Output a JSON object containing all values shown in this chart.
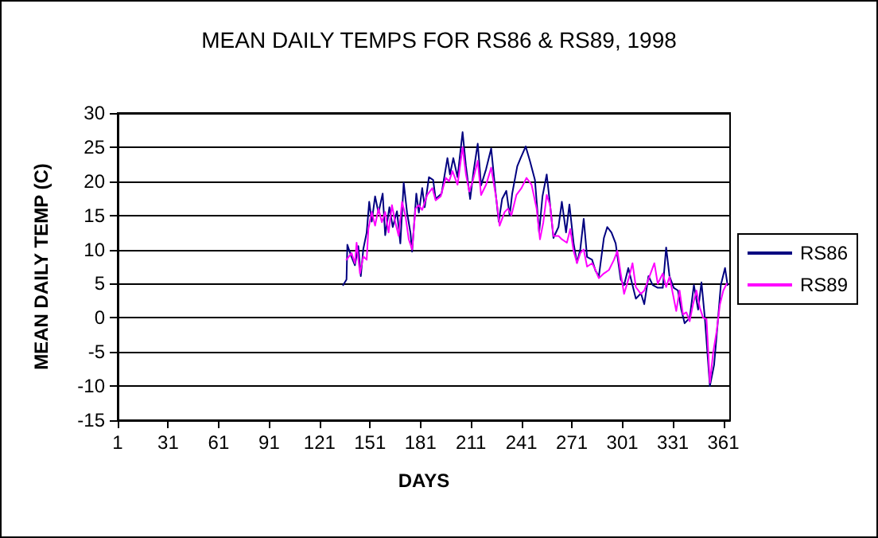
{
  "chart_data": {
    "type": "line",
    "title": "MEAN DAILY TEMPS FOR RS86 & RS89, 1998",
    "xlabel": "DAYS",
    "ylabel": "MEAN DAILY TEMP (C)",
    "xlim": [
      1,
      365
    ],
    "xticks": [
      1,
      31,
      61,
      91,
      121,
      151,
      181,
      211,
      241,
      271,
      301,
      331,
      361
    ],
    "ylim": [
      -15,
      30
    ],
    "yticks": [
      -15,
      -10,
      -5,
      0,
      5,
      10,
      15,
      20,
      25,
      30
    ],
    "grid": "y",
    "legend": "right",
    "marker": "none",
    "line_style": "solid",
    "series": [
      {
        "name": "RS86",
        "color": "#000080",
        "x": [
          135,
          137,
          137.5,
          140,
          142,
          144,
          145.5,
          147,
          149,
          150.5,
          152,
          154,
          156,
          158.5,
          160,
          162.5,
          164.5,
          167,
          169,
          171,
          173,
          175,
          176,
          178.5,
          180,
          182,
          183.5,
          186,
          188.5,
          190,
          193.5,
          197,
          198.5,
          200.5,
          203,
          206,
          208,
          210.5,
          212.5,
          215,
          217,
          220,
          223,
          225.5,
          227.5,
          229.5,
          232,
          234,
          235.5,
          238.5,
          240.5,
          243.5,
          246,
          249,
          251.5,
          253.5,
          256,
          258,
          260,
          263,
          265,
          267.5,
          269.5,
          272,
          274,
          276,
          278,
          280,
          283,
          285,
          287,
          290,
          292,
          294.5,
          297,
          300,
          302,
          304.5,
          307,
          309,
          312,
          314,
          316.5,
          319,
          322,
          325,
          327,
          329,
          331.5,
          334,
          336,
          338,
          341,
          343.5,
          346,
          348,
          350,
          353,
          355.5,
          357.5,
          359.5,
          362,
          363.5
        ],
        "values": [
          4.8,
          5.6,
          10.7,
          8.9,
          7.7,
          10.5,
          6.1,
          10.1,
          12.5,
          17,
          14.1,
          17.8,
          15.4,
          18.2,
          12.1,
          16.2,
          13.3,
          15.6,
          10.9,
          19.8,
          15.4,
          12.5,
          9.7,
          18.2,
          15.4,
          19,
          16.2,
          20.6,
          20.2,
          17.4,
          18.2,
          23.4,
          21,
          23.4,
          20.6,
          27.2,
          22.2,
          17.4,
          21.4,
          25.5,
          19.4,
          21.8,
          24.8,
          18.6,
          14.1,
          17.4,
          18.6,
          15,
          18.2,
          22.2,
          23.4,
          25.1,
          23,
          20.2,
          12.5,
          17.8,
          21,
          16.6,
          11.7,
          13.3,
          17,
          12.5,
          16.6,
          10.9,
          8.1,
          10.1,
          14.5,
          8.9,
          8.5,
          6.9,
          6.1,
          11.7,
          13.3,
          12.5,
          10.9,
          5.6,
          4.8,
          7.3,
          4.8,
          2.8,
          3.6,
          2,
          6.1,
          4.8,
          4.4,
          4.4,
          10.3,
          6.1,
          4.4,
          4,
          1.2,
          -0.8,
          0,
          4.8,
          1.2,
          5.2,
          0,
          -10,
          -6.9,
          -1.2,
          4.8,
          7.3,
          4.8
        ]
      },
      {
        "name": "RS89",
        "color": "#ff00ff",
        "x": [
          137,
          140,
          142,
          143,
          145,
          147,
          149,
          150,
          152,
          154,
          156,
          158,
          160,
          162,
          164,
          166,
          168,
          170,
          172,
          174,
          176,
          178,
          180,
          182,
          185,
          188,
          190,
          193,
          196,
          198,
          200,
          203,
          206,
          208,
          210,
          212,
          215,
          217,
          220,
          223,
          226,
          228,
          231,
          233,
          235,
          238,
          241,
          244,
          247,
          250,
          252,
          254,
          256,
          258,
          260,
          263,
          265,
          268,
          270,
          272,
          274,
          276,
          278,
          280,
          283,
          285,
          287,
          290,
          293,
          296,
          298,
          300,
          302,
          305,
          307,
          309,
          312,
          314,
          317,
          320,
          322,
          325,
          327,
          329,
          331,
          333,
          335,
          337,
          339,
          341,
          343,
          345,
          347,
          349,
          351,
          353,
          355,
          357,
          359,
          361,
          363
        ],
        "values": [
          8.5,
          9.5,
          8,
          11,
          6.5,
          9,
          8.5,
          13,
          15.5,
          13.5,
          16,
          14,
          15.5,
          12.5,
          16.5,
          14,
          12,
          17,
          15,
          11.5,
          10,
          16,
          16.5,
          15.8,
          18,
          19,
          17.2,
          17.8,
          20.5,
          20,
          21.5,
          19.5,
          25,
          21,
          18.5,
          20,
          23,
          18,
          19.5,
          22,
          17.5,
          13.5,
          15.5,
          16,
          15,
          18,
          19,
          20.5,
          19.5,
          16,
          11.5,
          14,
          18,
          16.5,
          12,
          12,
          11.5,
          11,
          13,
          9.8,
          8,
          9.5,
          10,
          7.5,
          8,
          7,
          5.8,
          6.5,
          7,
          8.5,
          9.8,
          6.5,
          3.5,
          6,
          8,
          4.5,
          3.5,
          4,
          6,
          8,
          5,
          6.5,
          4.5,
          6,
          3.5,
          1,
          4,
          0.5,
          0.8,
          -0.5,
          2,
          4,
          1.5,
          0,
          -0.2,
          -9.5,
          -5,
          -2,
          2,
          4,
          5
        ]
      }
    ]
  }
}
